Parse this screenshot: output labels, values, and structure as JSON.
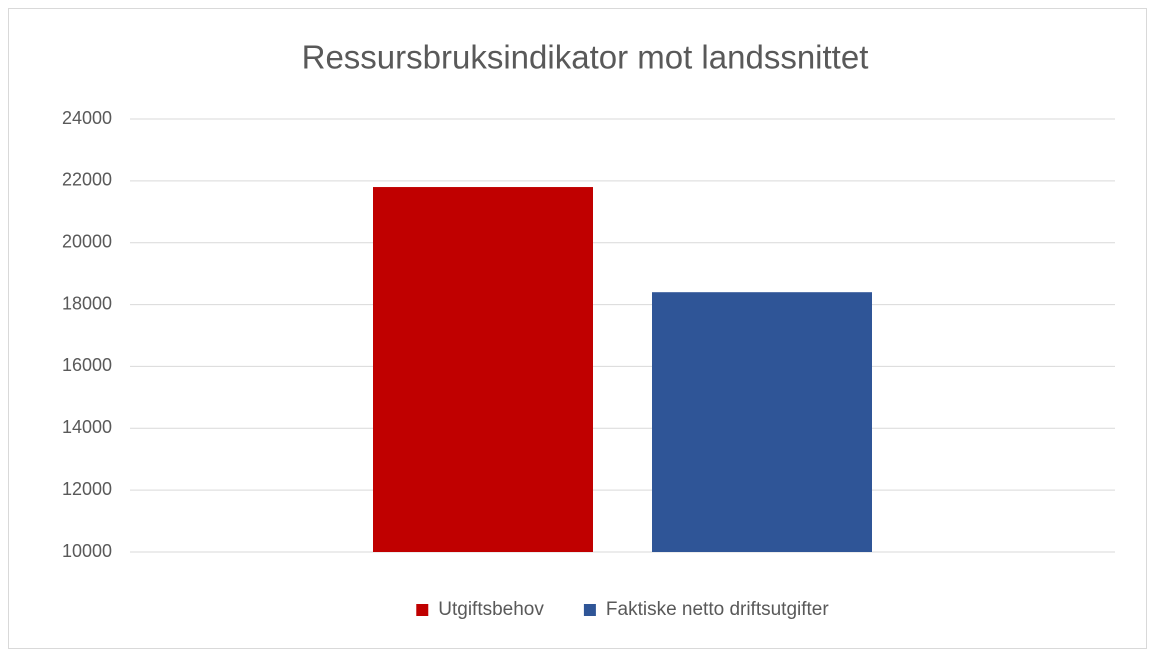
{
  "chart_data": {
    "type": "bar",
    "title": "Ressursbruksindikator mot landssnittet",
    "categories": [
      null
    ],
    "series": [
      {
        "name": "Utgiftsbehov",
        "color": "#c00000",
        "values": [
          21800
        ]
      },
      {
        "name": "Faktiske netto driftsutgifter",
        "color": "#2f5597",
        "values": [
          18400
        ]
      }
    ],
    "ylim": [
      10000,
      24000
    ],
    "yticks": [
      10000,
      12000,
      14000,
      16000,
      18000,
      20000,
      22000,
      24000
    ],
    "grid": true,
    "legend": "bottom"
  }
}
